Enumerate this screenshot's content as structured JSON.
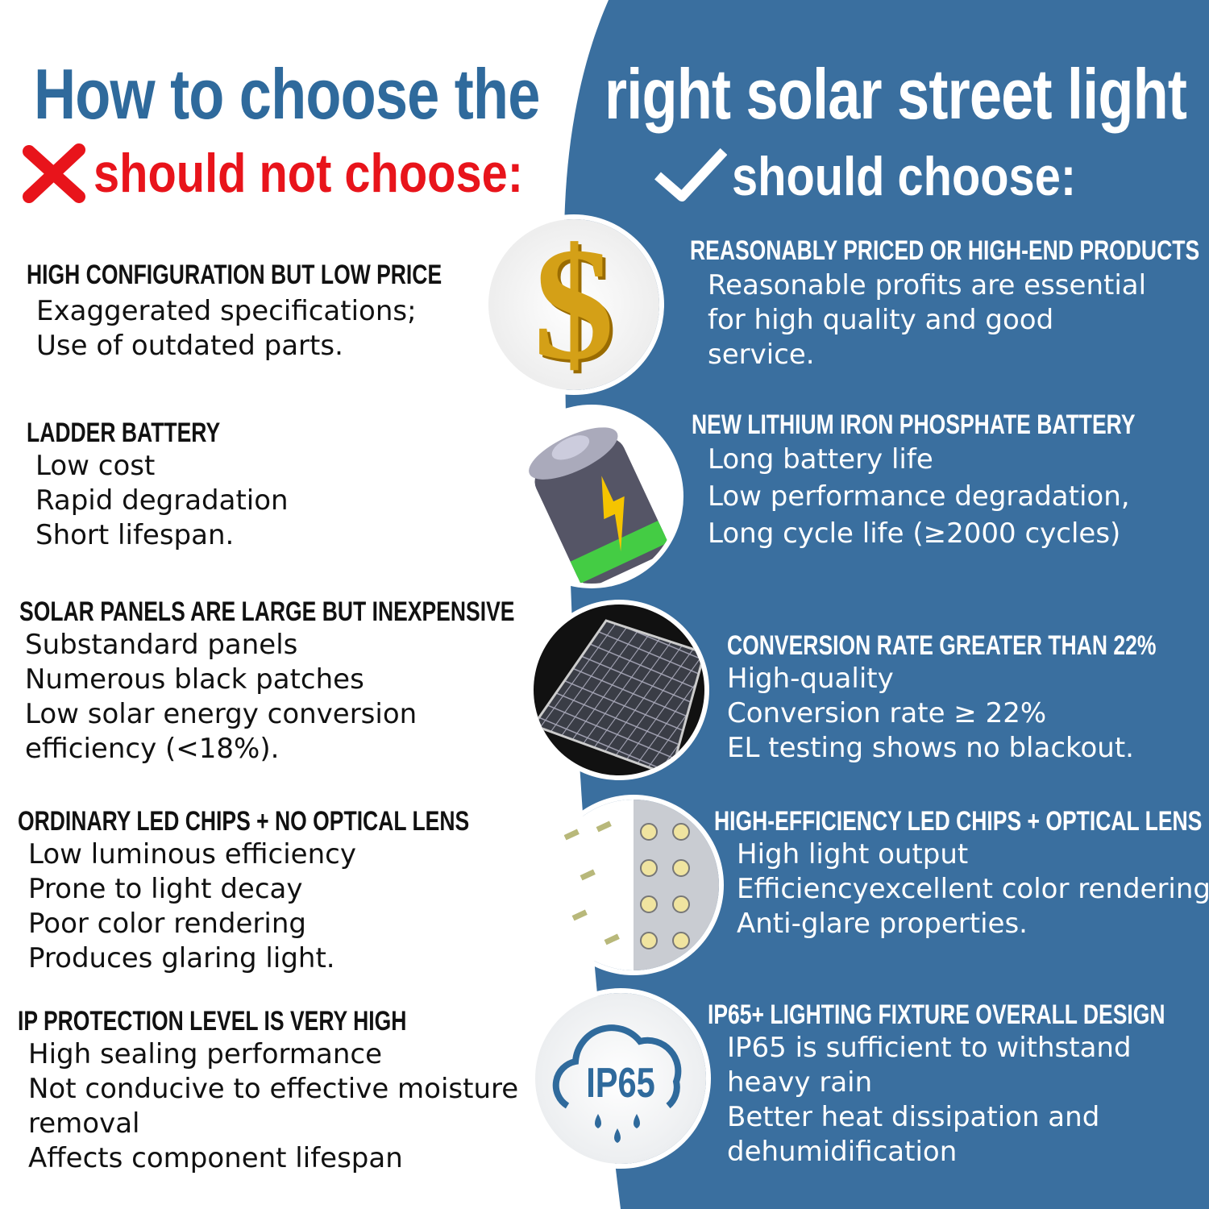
{
  "colors": {
    "blue": "#3a6f9f",
    "title_blue": "#2f6a9c",
    "red": "#e8141b"
  },
  "title": {
    "left": "How to choose the",
    "right": "right solar street light"
  },
  "bad": {
    "icon": "x-mark-icon",
    "label": "should not choose:"
  },
  "good": {
    "icon": "checkmark-icon",
    "label": "should choose:"
  },
  "rows": [
    {
      "bad_head": "HIGH CONFIGURATION BUT LOW PRICE",
      "bad_lines": [
        "Exaggerated specifications;",
        "Use of outdated parts."
      ],
      "icon": "dollar-icon",
      "good_head": "REASONABLY PRICED OR HIGH-END PRODUCTS",
      "good_lines": [
        "Reasonable profits are essential",
        "for high quality and good",
        "service."
      ]
    },
    {
      "bad_head": "LADDER BATTERY",
      "bad_lines": [
        "Low cost",
        "Rapid degradation",
        "Short lifespan."
      ],
      "icon": "battery-icon",
      "good_head": "NEW LITHIUM IRON PHOSPHATE BATTERY",
      "good_lines": [
        "Long battery life",
        "Low performance degradation,",
        "Long cycle life (≥2000 cycles)"
      ]
    },
    {
      "bad_head": "SOLAR PANELS ARE LARGE BUT INEXPENSIVE",
      "bad_lines": [
        "Substandard panels",
        "Numerous black patches",
        "Low solar energy conversion",
        "efficiency (<18%)."
      ],
      "icon": "solar-panel-icon",
      "good_head": "CONVERSION RATE GREATER THAN 22%",
      "good_lines": [
        "High-quality",
        "Conversion rate ≥ 22%",
        "EL testing shows no blackout."
      ]
    },
    {
      "bad_head": "ORDINARY LED CHIPS + NO OPTICAL LENS",
      "bad_lines": [
        "Low luminous efficiency",
        "Prone to light decay",
        "Poor color rendering",
        "Produces glaring light."
      ],
      "icon": "led-chips-icon",
      "good_head": "HIGH-EFFICIENCY LED CHIPS + OPTICAL LENS",
      "good_lines": [
        "High light output",
        "Efficiencyexcellent color rendering",
        "Anti-glare properties."
      ]
    },
    {
      "bad_head": "IP PROTECTION LEVEL IS VERY HIGH",
      "bad_lines": [
        "High sealing performance",
        "Not conducive to effective moisture",
        "removal",
        "Affects component lifespan"
      ],
      "icon": "ip65-cloud-icon",
      "icon_text": "IP65",
      "good_head": "IP65+ LIGHTING FIXTURE OVERALL DESIGN",
      "good_lines": [
        "IP65 is sufficient to withstand",
        "heavy rain",
        "Better heat dissipation and",
        "dehumidification"
      ]
    }
  ]
}
